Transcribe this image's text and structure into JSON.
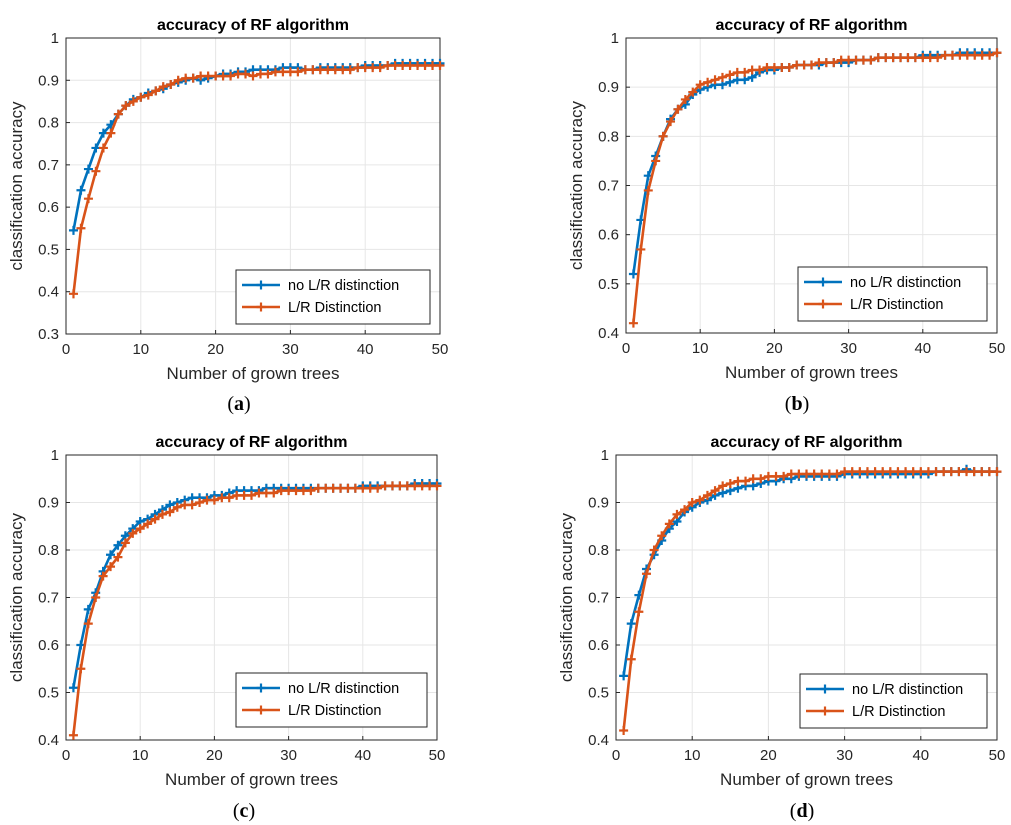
{
  "colors": {
    "series_a": "#0072BD",
    "series_b": "#D95319",
    "grid": "#E6E6E6",
    "axis": "#262626"
  },
  "chart_data": [
    {
      "id": "a",
      "type": "line",
      "title": "accuracy of RF algorithm",
      "xlabel": "Number of grown trees",
      "ylabel": "classification accuracy",
      "caption_letter": "a",
      "xlim": [
        0,
        50
      ],
      "ylim": [
        0.3,
        1.0
      ],
      "xticks": [
        "0",
        "10",
        "20",
        "30",
        "40",
        "50"
      ],
      "yticks": [
        "0.3",
        "0.4",
        "0.5",
        "0.6",
        "0.7",
        "0.8",
        "0.9",
        "1"
      ],
      "grid": true,
      "legend_position": "bottom-right",
      "marker": "+",
      "series": [
        {
          "name": "no L/R distinction",
          "x": [
            1,
            2,
            3,
            4,
            5,
            6,
            7,
            8,
            9,
            10,
            11,
            12,
            13,
            14,
            15,
            16,
            17,
            18,
            19,
            20,
            21,
            22,
            23,
            24,
            25,
            26,
            27,
            28,
            29,
            30,
            31,
            32,
            33,
            34,
            35,
            36,
            37,
            38,
            39,
            40,
            41,
            42,
            43,
            44,
            45,
            46,
            47,
            48,
            49,
            50
          ],
          "y": [
            0.545,
            0.64,
            0.69,
            0.74,
            0.775,
            0.795,
            0.82,
            0.84,
            0.855,
            0.86,
            0.87,
            0.875,
            0.88,
            0.89,
            0.895,
            0.9,
            0.905,
            0.9,
            0.905,
            0.91,
            0.915,
            0.915,
            0.92,
            0.92,
            0.925,
            0.925,
            0.925,
            0.925,
            0.93,
            0.93,
            0.93,
            0.925,
            0.925,
            0.93,
            0.93,
            0.93,
            0.93,
            0.93,
            0.93,
            0.935,
            0.935,
            0.935,
            0.935,
            0.94,
            0.94,
            0.94,
            0.94,
            0.94,
            0.94,
            0.94
          ]
        },
        {
          "name": "L/R Distinction",
          "x": [
            1,
            2,
            3,
            4,
            5,
            6,
            7,
            8,
            9,
            10,
            11,
            12,
            13,
            14,
            15,
            16,
            17,
            18,
            19,
            20,
            21,
            22,
            23,
            24,
            25,
            26,
            27,
            28,
            29,
            30,
            31,
            32,
            33,
            34,
            35,
            36,
            37,
            38,
            39,
            40,
            41,
            42,
            43,
            44,
            45,
            46,
            47,
            48,
            49,
            50
          ],
          "y": [
            0.395,
            0.55,
            0.62,
            0.685,
            0.74,
            0.775,
            0.82,
            0.84,
            0.85,
            0.86,
            0.865,
            0.875,
            0.885,
            0.89,
            0.9,
            0.905,
            0.905,
            0.91,
            0.91,
            0.91,
            0.91,
            0.91,
            0.915,
            0.915,
            0.91,
            0.915,
            0.915,
            0.92,
            0.92,
            0.92,
            0.92,
            0.925,
            0.925,
            0.925,
            0.925,
            0.925,
            0.925,
            0.925,
            0.93,
            0.93,
            0.93,
            0.93,
            0.935,
            0.935,
            0.935,
            0.935,
            0.935,
            0.935,
            0.935,
            0.935
          ]
        }
      ]
    },
    {
      "id": "b",
      "type": "line",
      "title": "accuracy of RF algorithm",
      "xlabel": "Number of grown trees",
      "ylabel": "classification accuracy",
      "caption_letter": "b",
      "xlim": [
        0,
        50
      ],
      "ylim": [
        0.4,
        1.0
      ],
      "xticks": [
        "0",
        "10",
        "20",
        "30",
        "40",
        "50"
      ],
      "yticks": [
        "0.4",
        "0.5",
        "0.6",
        "0.7",
        "0.8",
        "0.9",
        "1"
      ],
      "grid": true,
      "legend_position": "bottom-right",
      "marker": "+",
      "series": [
        {
          "name": "no L/R distinction",
          "x": [
            1,
            2,
            3,
            4,
            5,
            6,
            7,
            8,
            9,
            10,
            11,
            12,
            13,
            14,
            15,
            16,
            17,
            18,
            19,
            20,
            21,
            22,
            23,
            24,
            25,
            26,
            27,
            28,
            29,
            30,
            31,
            32,
            33,
            34,
            35,
            36,
            37,
            38,
            39,
            40,
            41,
            42,
            43,
            44,
            45,
            46,
            47,
            48,
            49,
            50
          ],
          "y": [
            0.52,
            0.63,
            0.72,
            0.76,
            0.8,
            0.835,
            0.855,
            0.865,
            0.885,
            0.895,
            0.9,
            0.905,
            0.905,
            0.91,
            0.915,
            0.915,
            0.92,
            0.93,
            0.935,
            0.935,
            0.94,
            0.94,
            0.945,
            0.945,
            0.945,
            0.945,
            0.95,
            0.95,
            0.95,
            0.95,
            0.955,
            0.955,
            0.955,
            0.96,
            0.96,
            0.96,
            0.96,
            0.96,
            0.96,
            0.965,
            0.965,
            0.965,
            0.965,
            0.965,
            0.97,
            0.97,
            0.97,
            0.97,
            0.97,
            0.97
          ]
        },
        {
          "name": "L/R Distinction",
          "x": [
            1,
            2,
            3,
            4,
            5,
            6,
            7,
            8,
            9,
            10,
            11,
            12,
            13,
            14,
            15,
            16,
            17,
            18,
            19,
            20,
            21,
            22,
            23,
            24,
            25,
            26,
            27,
            28,
            29,
            30,
            31,
            32,
            33,
            34,
            35,
            36,
            37,
            38,
            39,
            40,
            41,
            42,
            43,
            44,
            45,
            46,
            47,
            48,
            49,
            50
          ],
          "y": [
            0.42,
            0.57,
            0.69,
            0.75,
            0.8,
            0.83,
            0.855,
            0.875,
            0.89,
            0.905,
            0.91,
            0.915,
            0.92,
            0.925,
            0.93,
            0.93,
            0.935,
            0.935,
            0.94,
            0.94,
            0.94,
            0.94,
            0.945,
            0.945,
            0.945,
            0.95,
            0.95,
            0.95,
            0.955,
            0.955,
            0.955,
            0.955,
            0.955,
            0.96,
            0.96,
            0.96,
            0.96,
            0.96,
            0.96,
            0.96,
            0.96,
            0.96,
            0.965,
            0.965,
            0.965,
            0.965,
            0.965,
            0.965,
            0.965,
            0.97
          ]
        }
      ]
    },
    {
      "id": "c",
      "type": "line",
      "title": "accuracy of RF algorithm",
      "xlabel": "Number of grown trees",
      "ylabel": "classification accuracy",
      "caption_letter": "c",
      "xlim": [
        0,
        50
      ],
      "ylim": [
        0.4,
        1.0
      ],
      "xticks": [
        "0",
        "10",
        "20",
        "30",
        "40",
        "50"
      ],
      "yticks": [
        "0.4",
        "0.5",
        "0.6",
        "0.7",
        "0.8",
        "0.9",
        "1"
      ],
      "grid": true,
      "legend_position": "bottom-right",
      "marker": "+",
      "series": [
        {
          "name": "no L/R distinction",
          "x": [
            1,
            2,
            3,
            4,
            5,
            6,
            7,
            8,
            9,
            10,
            11,
            12,
            13,
            14,
            15,
            16,
            17,
            18,
            19,
            20,
            21,
            22,
            23,
            24,
            25,
            26,
            27,
            28,
            29,
            30,
            31,
            32,
            33,
            34,
            35,
            36,
            37,
            38,
            39,
            40,
            41,
            42,
            43,
            44,
            45,
            46,
            47,
            48,
            49,
            50
          ],
          "y": [
            0.51,
            0.6,
            0.675,
            0.71,
            0.755,
            0.79,
            0.81,
            0.83,
            0.845,
            0.86,
            0.865,
            0.875,
            0.885,
            0.895,
            0.9,
            0.905,
            0.91,
            0.91,
            0.91,
            0.915,
            0.915,
            0.92,
            0.925,
            0.925,
            0.925,
            0.925,
            0.93,
            0.93,
            0.93,
            0.93,
            0.93,
            0.93,
            0.93,
            0.93,
            0.93,
            0.93,
            0.93,
            0.93,
            0.93,
            0.935,
            0.935,
            0.935,
            0.935,
            0.935,
            0.935,
            0.935,
            0.94,
            0.94,
            0.94,
            0.94
          ]
        },
        {
          "name": "L/R Distinction",
          "x": [
            1,
            2,
            3,
            4,
            5,
            6,
            7,
            8,
            9,
            10,
            11,
            12,
            13,
            14,
            15,
            16,
            17,
            18,
            19,
            20,
            21,
            22,
            23,
            24,
            25,
            26,
            27,
            28,
            29,
            30,
            31,
            32,
            33,
            34,
            35,
            36,
            37,
            38,
            39,
            40,
            41,
            42,
            43,
            44,
            45,
            46,
            47,
            48,
            49,
            50
          ],
          "y": [
            0.41,
            0.55,
            0.645,
            0.7,
            0.745,
            0.765,
            0.785,
            0.815,
            0.835,
            0.845,
            0.855,
            0.865,
            0.875,
            0.88,
            0.89,
            0.895,
            0.895,
            0.9,
            0.905,
            0.905,
            0.91,
            0.91,
            0.915,
            0.915,
            0.915,
            0.92,
            0.92,
            0.92,
            0.925,
            0.925,
            0.925,
            0.925,
            0.925,
            0.93,
            0.93,
            0.93,
            0.93,
            0.93,
            0.93,
            0.93,
            0.93,
            0.93,
            0.935,
            0.935,
            0.935,
            0.935,
            0.935,
            0.935,
            0.935,
            0.935
          ]
        }
      ]
    },
    {
      "id": "d",
      "type": "line",
      "title": "accuracy of RF algorithm",
      "xlabel": "Number of grown trees",
      "ylabel": "classification accuracy",
      "caption_letter": "d",
      "xlim": [
        0,
        50
      ],
      "ylim": [
        0.4,
        1.0
      ],
      "xticks": [
        "0",
        "10",
        "20",
        "30",
        "40",
        "50"
      ],
      "yticks": [
        "0.4",
        "0.5",
        "0.6",
        "0.7",
        "0.8",
        "0.9",
        "1"
      ],
      "grid": true,
      "legend_position": "bottom-right",
      "marker": "+",
      "series": [
        {
          "name": "no L/R distinction",
          "x": [
            1,
            2,
            3,
            4,
            5,
            6,
            7,
            8,
            9,
            10,
            11,
            12,
            13,
            14,
            15,
            16,
            17,
            18,
            19,
            20,
            21,
            22,
            23,
            24,
            25,
            26,
            27,
            28,
            29,
            30,
            31,
            32,
            33,
            34,
            35,
            36,
            37,
            38,
            39,
            40,
            41,
            42,
            43,
            44,
            45,
            46,
            47,
            48,
            49,
            50
          ],
          "y": [
            0.535,
            0.645,
            0.705,
            0.76,
            0.79,
            0.82,
            0.845,
            0.86,
            0.88,
            0.89,
            0.9,
            0.905,
            0.915,
            0.92,
            0.925,
            0.93,
            0.935,
            0.935,
            0.94,
            0.945,
            0.945,
            0.95,
            0.95,
            0.955,
            0.955,
            0.955,
            0.955,
            0.955,
            0.955,
            0.96,
            0.96,
            0.96,
            0.96,
            0.96,
            0.96,
            0.96,
            0.96,
            0.96,
            0.96,
            0.96,
            0.96,
            0.965,
            0.965,
            0.965,
            0.965,
            0.97,
            0.965,
            0.965,
            0.965,
            0.965
          ]
        },
        {
          "name": "L/R Distinction",
          "x": [
            1,
            2,
            3,
            4,
            5,
            6,
            7,
            8,
            9,
            10,
            11,
            12,
            13,
            14,
            15,
            16,
            17,
            18,
            19,
            20,
            21,
            22,
            23,
            24,
            25,
            26,
            27,
            28,
            29,
            30,
            31,
            32,
            33,
            34,
            35,
            36,
            37,
            38,
            39,
            40,
            41,
            42,
            43,
            44,
            45,
            46,
            47,
            48,
            49,
            50
          ],
          "y": [
            0.42,
            0.57,
            0.67,
            0.75,
            0.8,
            0.83,
            0.855,
            0.875,
            0.885,
            0.9,
            0.905,
            0.915,
            0.925,
            0.935,
            0.94,
            0.945,
            0.945,
            0.95,
            0.95,
            0.955,
            0.955,
            0.955,
            0.96,
            0.96,
            0.96,
            0.96,
            0.96,
            0.96,
            0.96,
            0.965,
            0.965,
            0.965,
            0.965,
            0.965,
            0.965,
            0.965,
            0.965,
            0.965,
            0.965,
            0.965,
            0.965,
            0.965,
            0.965,
            0.965,
            0.965,
            0.965,
            0.965,
            0.965,
            0.965,
            0.965
          ]
        }
      ]
    }
  ]
}
